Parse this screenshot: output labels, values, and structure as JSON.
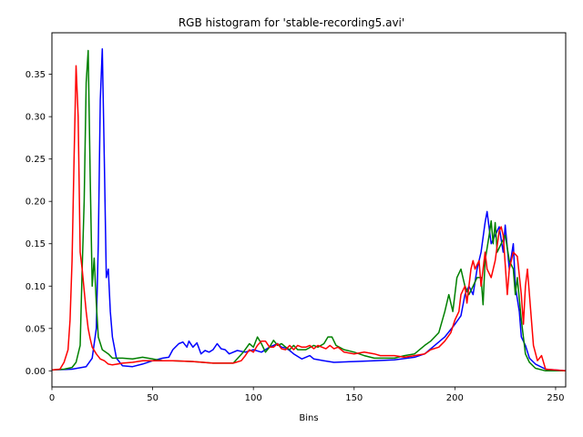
{
  "chart_data": {
    "type": "line",
    "title": "RGB histogram for 'stable-recording5.avi'",
    "xlabel": "Bins",
    "ylabel": "",
    "xlim": [
      0,
      255
    ],
    "ylim": [
      -0.019,
      0.399
    ],
    "xticks": [
      "0",
      "50",
      "100",
      "150",
      "200",
      "250"
    ],
    "yticks": [
      "0.00",
      "0.05",
      "0.10",
      "0.15",
      "0.20",
      "0.25",
      "0.30",
      "0.35"
    ],
    "grid": false,
    "series": [
      {
        "color": "#0000ff",
        "points": [
          [
            0,
            0.001
          ],
          [
            10,
            0.002
          ],
          [
            17,
            0.005
          ],
          [
            20,
            0.015
          ],
          [
            22,
            0.05
          ],
          [
            23,
            0.15
          ],
          [
            24,
            0.32
          ],
          [
            25,
            0.38
          ],
          [
            26,
            0.25
          ],
          [
            27,
            0.11
          ],
          [
            28,
            0.12
          ],
          [
            29,
            0.07
          ],
          [
            30,
            0.04
          ],
          [
            32,
            0.015
          ],
          [
            35,
            0.006
          ],
          [
            40,
            0.005
          ],
          [
            45,
            0.008
          ],
          [
            50,
            0.012
          ],
          [
            55,
            0.015
          ],
          [
            58,
            0.016
          ],
          [
            60,
            0.025
          ],
          [
            63,
            0.032
          ],
          [
            65,
            0.034
          ],
          [
            67,
            0.028
          ],
          [
            68,
            0.035
          ],
          [
            70,
            0.028
          ],
          [
            72,
            0.033
          ],
          [
            74,
            0.02
          ],
          [
            76,
            0.024
          ],
          [
            78,
            0.022
          ],
          [
            80,
            0.025
          ],
          [
            82,
            0.032
          ],
          [
            84,
            0.026
          ],
          [
            86,
            0.025
          ],
          [
            88,
            0.02
          ],
          [
            92,
            0.024
          ],
          [
            96,
            0.022
          ],
          [
            100,
            0.025
          ],
          [
            104,
            0.022
          ],
          [
            108,
            0.028
          ],
          [
            112,
            0.032
          ],
          [
            114,
            0.028
          ],
          [
            116,
            0.027
          ],
          [
            118,
            0.024
          ],
          [
            120,
            0.02
          ],
          [
            124,
            0.014
          ],
          [
            128,
            0.018
          ],
          [
            130,
            0.014
          ],
          [
            135,
            0.012
          ],
          [
            140,
            0.01
          ],
          [
            150,
            0.011
          ],
          [
            160,
            0.012
          ],
          [
            170,
            0.013
          ],
          [
            180,
            0.016
          ],
          [
            185,
            0.02
          ],
          [
            190,
            0.03
          ],
          [
            195,
            0.04
          ],
          [
            200,
            0.055
          ],
          [
            203,
            0.065
          ],
          [
            205,
            0.09
          ],
          [
            207,
            0.1
          ],
          [
            209,
            0.09
          ],
          [
            211,
            0.12
          ],
          [
            213,
            0.14
          ],
          [
            215,
            0.175
          ],
          [
            216,
            0.188
          ],
          [
            218,
            0.15
          ],
          [
            220,
            0.16
          ],
          [
            222,
            0.17
          ],
          [
            224,
            0.14
          ],
          [
            225,
            0.172
          ],
          [
            227,
            0.12
          ],
          [
            229,
            0.15
          ],
          [
            230,
            0.1
          ],
          [
            232,
            0.07
          ],
          [
            233,
            0.04
          ],
          [
            235,
            0.03
          ],
          [
            237,
            0.015
          ],
          [
            240,
            0.008
          ],
          [
            245,
            0.002
          ],
          [
            250,
            0.001
          ],
          [
            255,
            0.0
          ]
        ]
      },
      {
        "color": "#008000",
        "points": [
          [
            0,
            0.001
          ],
          [
            6,
            0.002
          ],
          [
            10,
            0.004
          ],
          [
            12,
            0.01
          ],
          [
            14,
            0.03
          ],
          [
            15,
            0.12
          ],
          [
            16,
            0.2
          ],
          [
            17,
            0.34
          ],
          [
            18,
            0.378
          ],
          [
            19,
            0.23
          ],
          [
            20,
            0.1
          ],
          [
            21,
            0.133
          ],
          [
            22,
            0.08
          ],
          [
            23,
            0.04
          ],
          [
            25,
            0.025
          ],
          [
            28,
            0.02
          ],
          [
            30,
            0.015
          ],
          [
            35,
            0.015
          ],
          [
            40,
            0.014
          ],
          [
            45,
            0.016
          ],
          [
            50,
            0.014
          ],
          [
            55,
            0.012
          ],
          [
            60,
            0.012
          ],
          [
            70,
            0.011
          ],
          [
            80,
            0.009
          ],
          [
            90,
            0.009
          ],
          [
            95,
            0.022
          ],
          [
            98,
            0.032
          ],
          [
            100,
            0.028
          ],
          [
            102,
            0.04
          ],
          [
            104,
            0.032
          ],
          [
            106,
            0.022
          ],
          [
            108,
            0.028
          ],
          [
            110,
            0.036
          ],
          [
            112,
            0.03
          ],
          [
            114,
            0.032
          ],
          [
            116,
            0.028
          ],
          [
            118,
            0.025
          ],
          [
            120,
            0.03
          ],
          [
            122,
            0.025
          ],
          [
            126,
            0.025
          ],
          [
            130,
            0.03
          ],
          [
            132,
            0.028
          ],
          [
            135,
            0.032
          ],
          [
            137,
            0.04
          ],
          [
            139,
            0.04
          ],
          [
            141,
            0.03
          ],
          [
            145,
            0.025
          ],
          [
            150,
            0.022
          ],
          [
            155,
            0.018
          ],
          [
            160,
            0.015
          ],
          [
            170,
            0.015
          ],
          [
            175,
            0.018
          ],
          [
            180,
            0.02
          ],
          [
            185,
            0.03
          ],
          [
            188,
            0.035
          ],
          [
            192,
            0.045
          ],
          [
            195,
            0.07
          ],
          [
            197,
            0.09
          ],
          [
            199,
            0.07
          ],
          [
            201,
            0.11
          ],
          [
            203,
            0.12
          ],
          [
            205,
            0.1
          ],
          [
            207,
            0.09
          ],
          [
            209,
            0.1
          ],
          [
            211,
            0.11
          ],
          [
            213,
            0.11
          ],
          [
            214,
            0.078
          ],
          [
            215,
            0.13
          ],
          [
            217,
            0.16
          ],
          [
            218,
            0.177
          ],
          [
            219,
            0.15
          ],
          [
            220,
            0.175
          ],
          [
            221,
            0.14
          ],
          [
            223,
            0.15
          ],
          [
            225,
            0.16
          ],
          [
            227,
            0.13
          ],
          [
            229,
            0.12
          ],
          [
            230,
            0.09
          ],
          [
            231,
            0.11
          ],
          [
            233,
            0.06
          ],
          [
            235,
            0.02
          ],
          [
            237,
            0.01
          ],
          [
            240,
            0.003
          ],
          [
            245,
            0.0
          ],
          [
            250,
            0.0
          ],
          [
            255,
            0.0
          ]
        ]
      },
      {
        "color": "#ff0000",
        "points": [
          [
            0,
            0.001
          ],
          [
            4,
            0.002
          ],
          [
            6,
            0.01
          ],
          [
            8,
            0.025
          ],
          [
            9,
            0.06
          ],
          [
            10,
            0.13
          ],
          [
            11,
            0.25
          ],
          [
            12,
            0.36
          ],
          [
            13,
            0.3
          ],
          [
            14,
            0.14
          ],
          [
            15,
            0.12
          ],
          [
            16,
            0.095
          ],
          [
            17,
            0.07
          ],
          [
            18,
            0.05
          ],
          [
            19,
            0.038
          ],
          [
            20,
            0.028
          ],
          [
            22,
            0.02
          ],
          [
            24,
            0.014
          ],
          [
            26,
            0.012
          ],
          [
            28,
            0.008
          ],
          [
            30,
            0.007
          ],
          [
            35,
            0.009
          ],
          [
            40,
            0.01
          ],
          [
            45,
            0.012
          ],
          [
            50,
            0.012
          ],
          [
            60,
            0.012
          ],
          [
            70,
            0.011
          ],
          [
            80,
            0.009
          ],
          [
            90,
            0.009
          ],
          [
            94,
            0.012
          ],
          [
            96,
            0.018
          ],
          [
            98,
            0.025
          ],
          [
            100,
            0.022
          ],
          [
            102,
            0.03
          ],
          [
            104,
            0.035
          ],
          [
            106,
            0.035
          ],
          [
            108,
            0.028
          ],
          [
            110,
            0.028
          ],
          [
            112,
            0.032
          ],
          [
            114,
            0.026
          ],
          [
            116,
            0.025
          ],
          [
            118,
            0.03
          ],
          [
            120,
            0.025
          ],
          [
            122,
            0.03
          ],
          [
            124,
            0.028
          ],
          [
            126,
            0.028
          ],
          [
            128,
            0.03
          ],
          [
            130,
            0.026
          ],
          [
            132,
            0.03
          ],
          [
            134,
            0.028
          ],
          [
            136,
            0.026
          ],
          [
            138,
            0.03
          ],
          [
            140,
            0.026
          ],
          [
            142,
            0.028
          ],
          [
            145,
            0.022
          ],
          [
            150,
            0.02
          ],
          [
            155,
            0.022
          ],
          [
            160,
            0.02
          ],
          [
            163,
            0.018
          ],
          [
            166,
            0.018
          ],
          [
            170,
            0.018
          ],
          [
            175,
            0.016
          ],
          [
            180,
            0.018
          ],
          [
            185,
            0.02
          ],
          [
            188,
            0.025
          ],
          [
            192,
            0.028
          ],
          [
            195,
            0.035
          ],
          [
            198,
            0.045
          ],
          [
            200,
            0.06
          ],
          [
            202,
            0.07
          ],
          [
            203,
            0.09
          ],
          [
            205,
            0.1
          ],
          [
            206,
            0.08
          ],
          [
            208,
            0.12
          ],
          [
            209,
            0.13
          ],
          [
            210,
            0.12
          ],
          [
            212,
            0.13
          ],
          [
            213,
            0.1
          ],
          [
            215,
            0.14
          ],
          [
            216,
            0.12
          ],
          [
            218,
            0.11
          ],
          [
            220,
            0.13
          ],
          [
            222,
            0.165
          ],
          [
            223,
            0.17
          ],
          [
            224,
            0.16
          ],
          [
            226,
            0.09
          ],
          [
            227,
            0.12
          ],
          [
            229,
            0.14
          ],
          [
            231,
            0.135
          ],
          [
            233,
            0.09
          ],
          [
            234,
            0.055
          ],
          [
            235,
            0.1
          ],
          [
            236,
            0.12
          ],
          [
            237,
            0.09
          ],
          [
            239,
            0.03
          ],
          [
            241,
            0.012
          ],
          [
            243,
            0.018
          ],
          [
            245,
            0.002
          ],
          [
            250,
            0.001
          ],
          [
            255,
            0.0
          ]
        ]
      }
    ]
  }
}
